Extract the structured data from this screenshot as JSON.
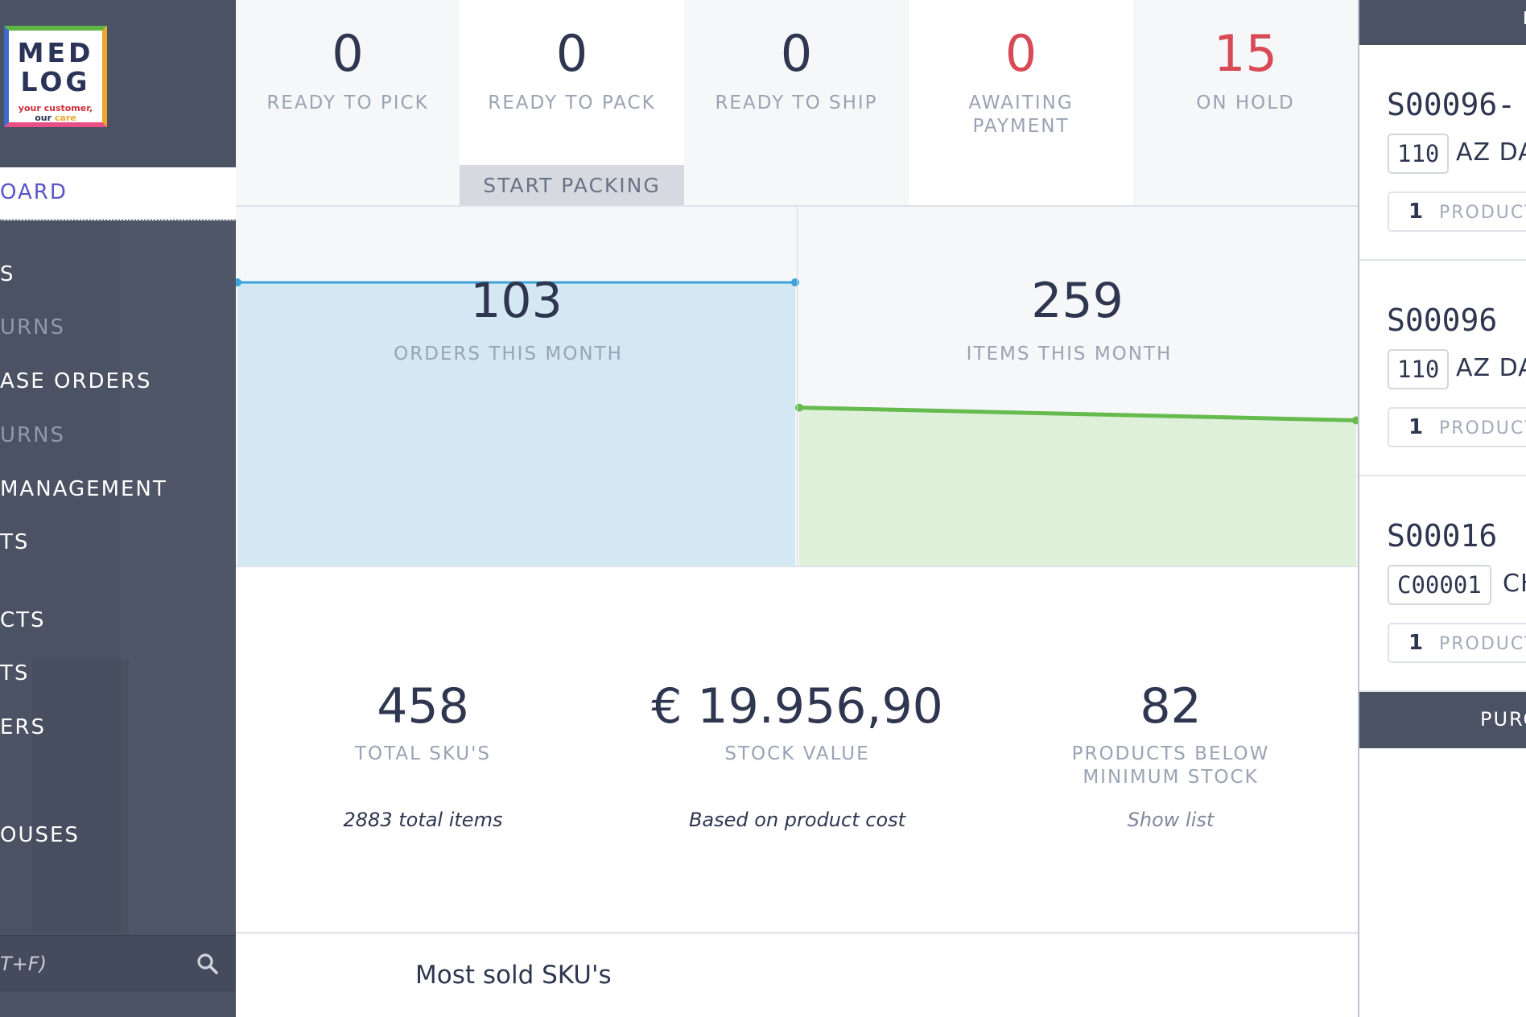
{
  "logo": {
    "line1": "MED",
    "line2": "LOG",
    "tag1": "your customer,",
    "tag2_a": "our ",
    "tag2_b": "care"
  },
  "sidebar": {
    "items": [
      {
        "label": "OARD",
        "state": "active"
      },
      {
        "label": "S",
        "state": "light"
      },
      {
        "label": "URNS",
        "state": "dim"
      },
      {
        "label": "ASE ORDERS",
        "state": "light"
      },
      {
        "label": "URNS",
        "state": "dim"
      },
      {
        "label": " MANAGEMENT",
        "state": "light"
      },
      {
        "label": "TS",
        "state": "light"
      },
      {
        "label": "CTS",
        "state": "light"
      },
      {
        "label": "TS",
        "state": "light"
      },
      {
        "label": "ERS",
        "state": "light"
      },
      {
        "label": "OUSES",
        "state": "light"
      }
    ],
    "search_placeholder": "T+F)"
  },
  "stats": [
    {
      "value": "0",
      "label": "READY TO PICK"
    },
    {
      "value": "0",
      "label": "READY TO PACK",
      "action": "START PACKING"
    },
    {
      "value": "0",
      "label": "READY TO SHIP"
    },
    {
      "value": "0",
      "label": "AWAITING PAYMENT",
      "alert": true
    },
    {
      "value": "15",
      "label": "ON HOLD",
      "alert": true
    }
  ],
  "month": {
    "orders": {
      "value": "103",
      "label": "ORDERS THIS MONTH"
    },
    "items": {
      "value": "259",
      "label": "ITEMS THIS MONTH"
    }
  },
  "chart_data": [
    {
      "type": "area",
      "series": [
        {
          "values": [
            103,
            103
          ]
        }
      ],
      "color": "#3ba3d9",
      "fill": "#d4e8f4"
    },
    {
      "type": "area",
      "series": [
        {
          "values": [
            259,
            245
          ]
        }
      ],
      "color": "#66bb4f",
      "fill": "#dff0da"
    }
  ],
  "kpis": [
    {
      "value": "458",
      "label": "TOTAL SKU'S",
      "note_strong": "2883",
      "note_rest": " total items"
    },
    {
      "value": "€ 19.956,90",
      "label": "STOCK VALUE",
      "note_rest": "Based on product cost"
    },
    {
      "value": "82",
      "label": "PRODUCTS BELOW MINIMUM STOCK",
      "note_rest": "Show list"
    }
  ],
  "most_sold": {
    "title": "Most sold SKU's"
  },
  "orders": [
    {
      "id": "S00096-",
      "code": "110",
      "name": "AZ DA",
      "count": "1",
      "products_label": "PRODUCT"
    },
    {
      "id": "S00096",
      "code": "110",
      "name": "AZ DA",
      "count": "1",
      "products_label": "PRODUCT"
    },
    {
      "id": "S00016",
      "code": "C00001",
      "name": "CH",
      "count": "1",
      "products_label": "PRODUCT"
    }
  ],
  "panel_footer": "PURC",
  "colors": {
    "sidebar": "#4a5264",
    "accent": "#5a55c8",
    "alert": "#d74a56",
    "orders_line": "#3ba3d9",
    "items_line": "#66bb4f"
  }
}
